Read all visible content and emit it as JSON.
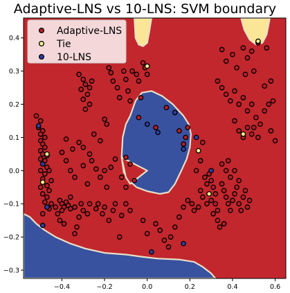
{
  "chart_data": {
    "type": "scatter",
    "title": "Adaptive-LNS vs 10-LNS: SVM boundary",
    "xlabel": "",
    "ylabel": "",
    "xlim": [
      -0.58,
      0.65
    ],
    "ylim": [
      -0.325,
      0.46
    ],
    "xticks": [
      -0.4,
      -0.2,
      0.0,
      0.2,
      0.4,
      0.6
    ],
    "xtick_labels": [
      "−0.4",
      "−0.2",
      "0.0",
      "0.2",
      "0.4",
      "0.6"
    ],
    "yticks": [
      -0.3,
      -0.2,
      -0.1,
      0.0,
      0.1,
      0.2,
      0.3,
      0.4
    ],
    "ytick_labels": [
      "−0.3",
      "−0.2",
      "−0.1",
      "0.0",
      "0.1",
      "0.2",
      "0.3",
      "0.4"
    ],
    "legend_location": "top-left",
    "colors": {
      "adaptive_region": "#c2272d",
      "ten_lns_region": "#3952a0",
      "tie_region": "#fbe697",
      "adaptive_point": "#b51d27",
      "tie_point": "#f4f08e",
      "ten_lns_point": "#2c3fa0",
      "edge": "#000000"
    },
    "regions": [
      {
        "class": "10-LNS",
        "polygon": [
          [
            -0.58,
            -0.13
          ],
          [
            -0.55,
            -0.14
          ],
          [
            -0.52,
            -0.16
          ],
          [
            -0.48,
            -0.18
          ],
          [
            -0.43,
            -0.2
          ],
          [
            -0.36,
            -0.22
          ],
          [
            -0.29,
            -0.235
          ],
          [
            -0.2,
            -0.248
          ],
          [
            -0.1,
            -0.253
          ],
          [
            -0.02,
            -0.26
          ],
          [
            0.05,
            -0.265
          ],
          [
            0.15,
            -0.268
          ],
          [
            0.22,
            -0.275
          ],
          [
            0.26,
            -0.29
          ],
          [
            0.3,
            -0.31
          ],
          [
            0.32,
            -0.325
          ],
          [
            -0.58,
            -0.325
          ]
        ]
      },
      {
        "class": "10-LNS",
        "polygon": [
          [
            -0.08,
            0.165
          ],
          [
            -0.055,
            0.21
          ],
          [
            -0.025,
            0.235
          ],
          [
            0.02,
            0.24
          ],
          [
            0.07,
            0.225
          ],
          [
            0.12,
            0.2
          ],
          [
            0.17,
            0.165
          ],
          [
            0.195,
            0.14
          ],
          [
            0.205,
            0.11
          ],
          [
            0.2,
            0.07
          ],
          [
            0.185,
            0.035
          ],
          [
            0.16,
            0.0
          ],
          [
            0.13,
            -0.04
          ],
          [
            0.1,
            -0.065
          ],
          [
            0.06,
            -0.07
          ],
          [
            0.0,
            -0.062
          ],
          [
            -0.05,
            -0.05
          ],
          [
            -0.085,
            -0.03
          ],
          [
            -0.11,
            -0.005
          ],
          [
            -0.12,
            0.04
          ],
          [
            -0.115,
            0.1
          ],
          [
            -0.1,
            0.14
          ]
        ]
      },
      {
        "class": "Tie",
        "polygon": [
          [
            -0.06,
            0.46
          ],
          [
            -0.055,
            0.4
          ],
          [
            -0.04,
            0.38
          ],
          [
            -0.02,
            0.375
          ],
          [
            0.0,
            0.385
          ],
          [
            0.01,
            0.42
          ],
          [
            0.02,
            0.46
          ]
        ]
      },
      {
        "class": "Tie",
        "polygon": [
          [
            0.44,
            0.46
          ],
          [
            0.455,
            0.425
          ],
          [
            0.48,
            0.395
          ],
          [
            0.51,
            0.38
          ],
          [
            0.54,
            0.385
          ],
          [
            0.56,
            0.41
          ],
          [
            0.575,
            0.46
          ]
        ]
      },
      {
        "class": "Adaptive-LNS",
        "polygon": [
          [
            -0.12,
            0.04
          ],
          [
            -0.1,
            -0.02
          ],
          [
            -0.08,
            -0.04
          ],
          [
            0.0,
            0.0
          ]
        ]
      }
    ],
    "series": [
      {
        "name": "Adaptive-LNS",
        "points": [
          [
            -0.52,
            0.165
          ],
          [
            -0.5,
            0.15
          ],
          [
            -0.51,
            0.13
          ],
          [
            -0.49,
            0.12
          ],
          [
            -0.5,
            0.11
          ],
          [
            -0.48,
            0.1
          ],
          [
            -0.5,
            0.09
          ],
          [
            -0.49,
            0.08
          ],
          [
            -0.48,
            0.07
          ],
          [
            -0.5,
            0.06
          ],
          [
            -0.49,
            0.05
          ],
          [
            -0.47,
            0.045
          ],
          [
            -0.5,
            0.035
          ],
          [
            -0.48,
            0.03
          ],
          [
            -0.49,
            0.02
          ],
          [
            -0.47,
            0.01
          ],
          [
            -0.5,
            0.0
          ],
          [
            -0.46,
            0.0
          ],
          [
            -0.48,
            -0.01
          ],
          [
            -0.49,
            -0.025
          ],
          [
            -0.45,
            -0.03
          ],
          [
            -0.47,
            -0.045
          ],
          [
            -0.5,
            -0.05
          ],
          [
            -0.46,
            -0.06
          ],
          [
            -0.49,
            -0.07
          ],
          [
            -0.47,
            -0.08
          ],
          [
            -0.48,
            -0.095
          ],
          [
            -0.45,
            -0.1
          ],
          [
            -0.43,
            -0.11
          ],
          [
            -0.46,
            -0.115
          ],
          [
            -0.49,
            -0.13
          ],
          [
            -0.41,
            -0.09
          ],
          [
            -0.4,
            -0.1
          ],
          [
            -0.39,
            -0.11
          ],
          [
            -0.38,
            -0.095
          ],
          [
            -0.37,
            -0.105
          ],
          [
            -0.36,
            -0.115
          ],
          [
            -0.4,
            -0.12
          ],
          [
            -0.42,
            -0.13
          ],
          [
            -0.41,
            -0.15
          ],
          [
            -0.39,
            -0.16
          ],
          [
            -0.36,
            -0.08
          ],
          [
            -0.34,
            -0.11
          ],
          [
            -0.31,
            -0.1
          ],
          [
            -0.3,
            -0.12
          ],
          [
            -0.32,
            -0.14
          ],
          [
            -0.33,
            -0.17
          ],
          [
            -0.34,
            -0.19
          ],
          [
            -0.28,
            -0.13
          ],
          [
            -0.27,
            -0.1
          ],
          [
            -0.24,
            -0.115
          ],
          [
            -0.23,
            -0.1
          ],
          [
            -0.21,
            -0.13
          ],
          [
            -0.2,
            -0.11
          ],
          [
            -0.18,
            -0.15
          ],
          [
            -0.16,
            -0.12
          ],
          [
            -0.15,
            -0.1
          ],
          [
            -0.13,
            -0.2
          ],
          [
            -0.12,
            -0.135
          ],
          [
            -0.1,
            -0.1
          ],
          [
            -0.08,
            -0.12
          ],
          [
            -0.38,
            0.03
          ],
          [
            -0.36,
            0.0
          ],
          [
            -0.34,
            -0.02
          ],
          [
            -0.3,
            0.015
          ],
          [
            -0.28,
            -0.04
          ],
          [
            -0.26,
            0.03
          ],
          [
            -0.24,
            0.005
          ],
          [
            -0.22,
            -0.02
          ],
          [
            -0.2,
            0.0
          ],
          [
            -0.19,
            -0.05
          ],
          [
            -0.17,
            0.01
          ],
          [
            -0.15,
            0.035
          ],
          [
            -0.12,
            -0.02
          ],
          [
            -0.1,
            -0.05
          ],
          [
            -0.08,
            0.02
          ],
          [
            -0.06,
            -0.03
          ],
          [
            -0.32,
            0.29
          ],
          [
            -0.3,
            0.275
          ],
          [
            -0.29,
            0.26
          ],
          [
            -0.31,
            0.245
          ],
          [
            -0.28,
            0.23
          ],
          [
            -0.3,
            0.215
          ],
          [
            -0.27,
            0.2
          ],
          [
            -0.29,
            0.185
          ],
          [
            -0.26,
            0.27
          ],
          [
            -0.27,
            0.25
          ],
          [
            -0.2,
            0.155
          ],
          [
            -0.19,
            0.14
          ],
          [
            -0.25,
            0.11
          ],
          [
            -0.22,
            0.09
          ],
          [
            -0.38,
            0.095
          ],
          [
            -0.35,
            0.065
          ],
          [
            -0.32,
            0.085
          ],
          [
            -0.3,
            0.07
          ],
          [
            -0.27,
            0.05
          ],
          [
            -0.4,
            0.055
          ],
          [
            -0.18,
            0.31
          ],
          [
            -0.17,
            0.295
          ],
          [
            -0.16,
            0.27
          ],
          [
            -0.14,
            0.25
          ],
          [
            -0.13,
            0.22
          ],
          [
            -0.11,
            0.3
          ],
          [
            -0.1,
            0.275
          ],
          [
            -0.09,
            0.24
          ],
          [
            -0.08,
            0.21
          ],
          [
            -0.07,
            0.3
          ],
          [
            -0.05,
            0.29
          ],
          [
            -0.04,
            0.27
          ],
          [
            -0.03,
            0.22
          ],
          [
            -0.01,
            0.31
          ],
          [
            0.0,
            0.29
          ],
          [
            -0.02,
            0.325
          ],
          [
            -0.04,
            0.16
          ],
          [
            0.04,
            0.13
          ],
          [
            0.09,
            0.19
          ],
          [
            0.13,
            0.175
          ],
          [
            0.15,
            0.12
          ],
          [
            0.18,
            0.1
          ],
          [
            0.17,
            0.08
          ],
          [
            0.19,
            0.13
          ],
          [
            -0.1,
            0.04
          ],
          [
            0.26,
            0.085
          ],
          [
            0.25,
            0.03
          ],
          [
            0.23,
            0.0
          ],
          [
            0.27,
            -0.02
          ],
          [
            0.28,
            -0.04
          ],
          [
            0.25,
            -0.06
          ],
          [
            0.26,
            -0.08
          ],
          [
            0.28,
            -0.1
          ],
          [
            0.24,
            -0.11
          ],
          [
            0.22,
            -0.12
          ],
          [
            0.21,
            -0.1
          ],
          [
            0.19,
            -0.09
          ],
          [
            0.17,
            -0.11
          ],
          [
            0.15,
            -0.14
          ],
          [
            0.13,
            -0.17
          ],
          [
            0.11,
            -0.2
          ],
          [
            0.1,
            -0.23
          ],
          [
            0.08,
            -0.21
          ],
          [
            0.06,
            -0.18
          ],
          [
            0.04,
            -0.16
          ],
          [
            0.0,
            -0.19
          ],
          [
            -0.02,
            -0.15
          ],
          [
            0.29,
            -0.01
          ],
          [
            0.3,
            -0.03
          ],
          [
            0.31,
            -0.05
          ],
          [
            0.32,
            -0.07
          ],
          [
            0.3,
            -0.09
          ],
          [
            0.32,
            -0.1
          ],
          [
            0.33,
            -0.12
          ],
          [
            0.31,
            -0.13
          ],
          [
            0.33,
            -0.15
          ],
          [
            0.34,
            -0.17
          ],
          [
            0.36,
            -0.16
          ],
          [
            0.35,
            -0.04
          ],
          [
            0.36,
            -0.06
          ],
          [
            0.37,
            -0.08
          ],
          [
            0.38,
            -0.1
          ],
          [
            0.39,
            -0.12
          ],
          [
            0.4,
            -0.09
          ],
          [
            0.41,
            -0.07
          ],
          [
            0.42,
            -0.05
          ],
          [
            0.43,
            -0.1
          ],
          [
            0.44,
            -0.12
          ],
          [
            0.45,
            -0.08
          ],
          [
            0.46,
            -0.06
          ],
          [
            0.47,
            -0.11
          ],
          [
            0.48,
            -0.09
          ],
          [
            0.35,
            0.02
          ],
          [
            0.37,
            0.0
          ],
          [
            0.39,
            -0.02
          ],
          [
            0.41,
            0.0
          ],
          [
            0.38,
            0.03
          ],
          [
            0.43,
            -0.03
          ],
          [
            0.35,
            0.365
          ],
          [
            0.37,
            0.33
          ],
          [
            0.4,
            0.35
          ],
          [
            0.42,
            0.31
          ],
          [
            0.45,
            0.37
          ],
          [
            0.47,
            0.34
          ],
          [
            0.49,
            0.36
          ],
          [
            0.5,
            0.3
          ],
          [
            0.46,
            0.29
          ],
          [
            0.33,
            0.27
          ],
          [
            0.35,
            0.25
          ],
          [
            0.37,
            0.23
          ],
          [
            0.39,
            0.21
          ],
          [
            0.41,
            0.24
          ],
          [
            0.43,
            0.2
          ],
          [
            0.45,
            0.22
          ],
          [
            0.47,
            0.18
          ],
          [
            0.49,
            0.2
          ],
          [
            0.51,
            0.16
          ],
          [
            0.53,
            0.14
          ],
          [
            0.55,
            0.18
          ],
          [
            0.57,
            0.2
          ],
          [
            0.59,
            0.21
          ],
          [
            0.41,
            0.15
          ],
          [
            0.43,
            0.12
          ],
          [
            0.45,
            0.1
          ],
          [
            0.47,
            0.13
          ],
          [
            0.49,
            0.11
          ],
          [
            0.5,
            0.13
          ],
          [
            0.52,
            0.1
          ],
          [
            0.6,
            0.09
          ],
          [
            0.58,
            0.12
          ],
          [
            0.55,
            0.255
          ],
          [
            0.58,
            0.27
          ],
          [
            0.52,
            0.385
          ],
          [
            0.56,
            0.37
          ]
        ]
      },
      {
        "name": "Tie",
        "points": [
          [
            -0.49,
            -0.035
          ],
          [
            -0.47,
            0.05
          ],
          [
            0.0,
            0.315
          ],
          [
            0.24,
            0.06
          ],
          [
            0.52,
            0.39
          ],
          [
            0.45,
            0.11
          ],
          [
            0.29,
            -0.07
          ]
        ]
      },
      {
        "name": "10-LNS",
        "points": [
          [
            -0.51,
            0.135
          ],
          [
            -0.49,
            0.02
          ],
          [
            -0.47,
            -0.11
          ],
          [
            -0.49,
            -0.165
          ],
          [
            0.0,
            0.14
          ],
          [
            0.05,
            0.115
          ],
          [
            0.13,
            0.175
          ],
          [
            0.17,
            0.065
          ],
          [
            0.23,
            0.1
          ],
          [
            0.3,
            0.0
          ],
          [
            0.17,
            -0.22
          ],
          [
            0.02,
            -0.245
          ]
        ]
      }
    ]
  },
  "legend": [
    {
      "label": "Adaptive-LNS",
      "color": "#b51d27"
    },
    {
      "label": "Tie",
      "color": "#f4f08e"
    },
    {
      "label": "10-LNS",
      "color": "#2c3fa0"
    }
  ]
}
